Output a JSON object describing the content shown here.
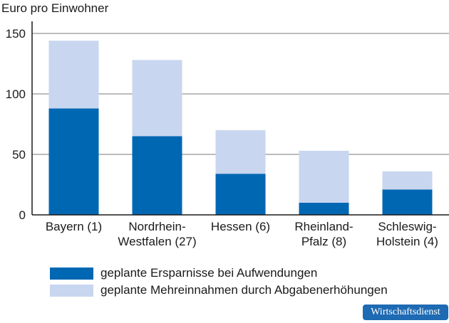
{
  "chart_data": {
    "type": "bar",
    "stacked": true,
    "ylabel": "Euro pro Einwohner",
    "ylim": [
      0,
      160
    ],
    "yticks": [
      0,
      50,
      100,
      150
    ],
    "grid": true,
    "categories": [
      [
        "Bayern (1)"
      ],
      [
        "Nordrhein-",
        "Westfalen (27)"
      ],
      [
        "Hessen (6)"
      ],
      [
        "Rheinland-",
        "Pfalz (8)"
      ],
      [
        "Schleswig-",
        "Holstein (4)"
      ]
    ],
    "series": [
      {
        "name": "geplante Ersparnisse bei Aufwendungen",
        "color": "#0067b3",
        "values": [
          88,
          65,
          34,
          10,
          21
        ]
      },
      {
        "name": "geplante Mehreinnahmen durch Abgabenerhöhungen",
        "color": "#c8d6ef",
        "values": [
          56,
          63,
          36,
          43,
          15
        ]
      }
    ],
    "legend_position": "bottom"
  },
  "footer": {
    "badge": "Wirtschaftsdienst"
  }
}
